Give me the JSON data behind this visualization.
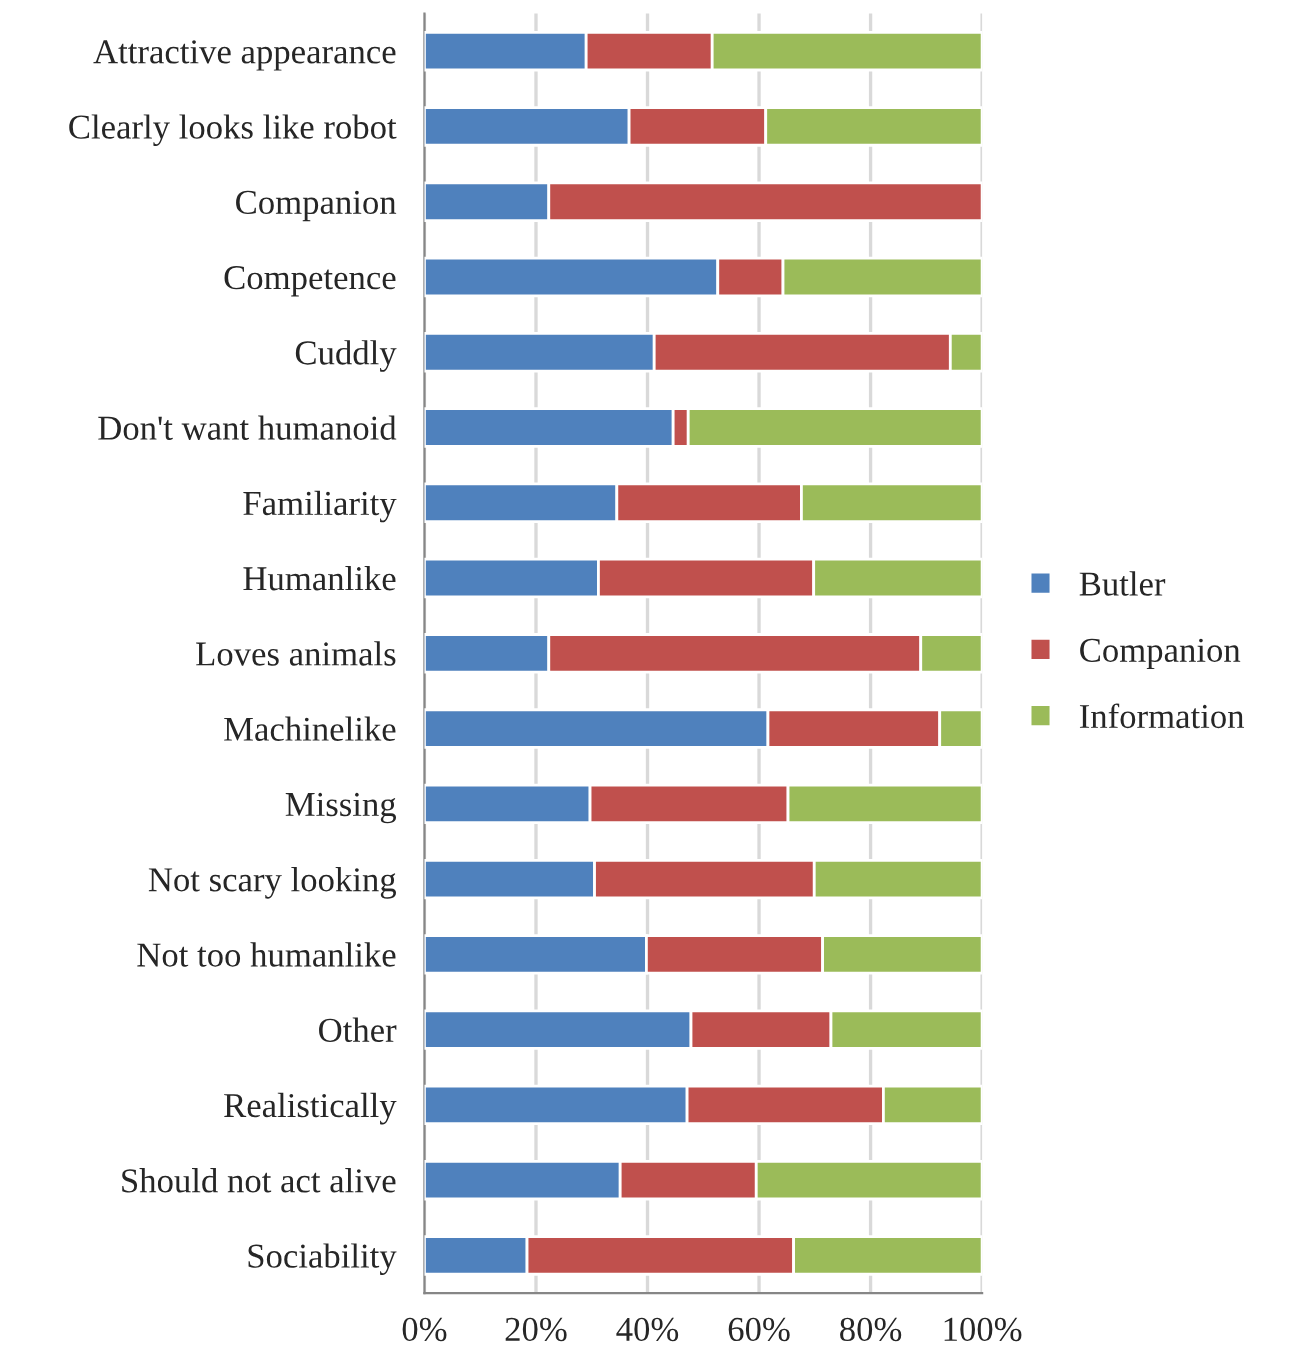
{
  "chart_data": {
    "type": "bar",
    "orientation": "horizontal",
    "stacked": true,
    "categories": [
      "Attractive appearance",
      "Clearly looks like robot",
      "Companion",
      "Competence",
      "Cuddly",
      "Don't want humanoid",
      "Familiarity",
      "Humanlike",
      "Loves animals",
      "Machinelike",
      "Missing",
      "Not scary looking",
      "Not too humanlike",
      "Other",
      "Realistically",
      "Should not act alive",
      "Sociability"
    ],
    "series": [
      {
        "name": "Butler",
        "color": "#4f81bd",
        "values": [
          29.0,
          36.7,
          22.3,
          52.6,
          41.2,
          44.6,
          34.5,
          31.2,
          22.3,
          61.6,
          29.7,
          30.5,
          39.8,
          47.8,
          47.1,
          35.1,
          18.4
        ]
      },
      {
        "name": "Companion",
        "color": "#c0504d",
        "values": [
          22.6,
          24.5,
          77.7,
          11.7,
          53.1,
          2.7,
          33.1,
          38.6,
          66.7,
          30.8,
          35.5,
          39.4,
          31.6,
          25.1,
          35.2,
          24.4,
          47.8
        ]
      },
      {
        "name": "Information",
        "color": "#9bbb59",
        "values": [
          48.4,
          38.8,
          null,
          35.7,
          5.7,
          52.7,
          32.4,
          30.2,
          11.0,
          7.6,
          34.8,
          30.1,
          28.6,
          27.1,
          17.7,
          40.5,
          33.8
        ]
      }
    ],
    "xlim": [
      0,
      100
    ],
    "xticks": [
      {
        "value": 0,
        "label": "0%"
      },
      {
        "value": 20,
        "label": "20%"
      },
      {
        "value": 40,
        "label": "40%"
      },
      {
        "value": 60,
        "label": "60%"
      },
      {
        "value": 80,
        "label": "80%"
      },
      {
        "value": 100,
        "label": "100%"
      }
    ],
    "grid": "x",
    "legend": "right"
  }
}
